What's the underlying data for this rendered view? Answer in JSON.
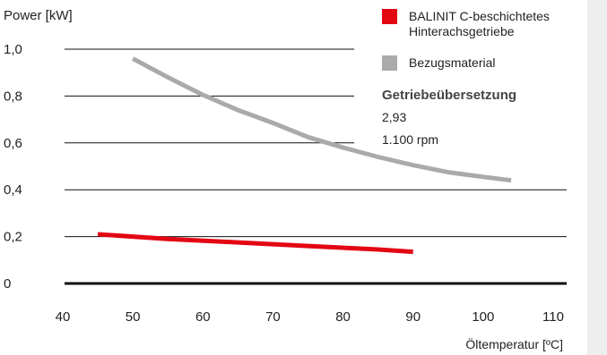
{
  "chart_data": {
    "type": "line",
    "ylabel": "Power [kW]",
    "xlabel": "Öltemperatur [ºC]",
    "x_ticks": [
      40,
      50,
      60,
      70,
      80,
      90,
      100,
      110
    ],
    "y_ticks": [
      "0",
      "0,2",
      "0,4",
      "0,6",
      "0,8",
      "1,0"
    ],
    "y_tick_values": [
      0,
      0.2,
      0.4,
      0.6,
      0.8,
      1.0
    ],
    "xlim": [
      40,
      110
    ],
    "ylim": [
      0,
      1.0
    ],
    "grid": "horizontal",
    "legend_position": "top-right",
    "series": [
      {
        "name_lines": [
          "BALINIT C-beschichtetes",
          "Hinterachsgetriebe"
        ],
        "color": "#e30613",
        "x": [
          45,
          55,
          65,
          75,
          85,
          90
        ],
        "y": [
          0.21,
          0.19,
          0.175,
          0.16,
          0.145,
          0.135
        ]
      },
      {
        "name_lines": [
          "Bezugsmaterial"
        ],
        "color": "#aaaaaa",
        "x": [
          50,
          55,
          60,
          65,
          70,
          75,
          80,
          85,
          90,
          95,
          100,
          104
        ],
        "y": [
          0.96,
          0.88,
          0.805,
          0.74,
          0.685,
          0.625,
          0.58,
          0.54,
          0.505,
          0.475,
          0.455,
          0.44
        ]
      }
    ],
    "annotation": {
      "title": "Getriebeübersetzung",
      "lines": [
        "2,93",
        "1.100 rpm"
      ]
    }
  }
}
